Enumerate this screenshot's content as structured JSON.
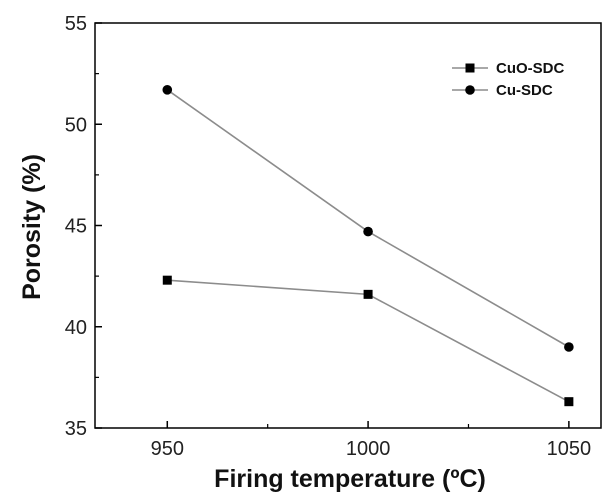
{
  "chart_data": {
    "type": "line",
    "title": "",
    "xlabel": "Firing temperature (ºC)",
    "ylabel": "Porosity (%)",
    "xlim": [
      932,
      1058
    ],
    "ylim": [
      35,
      55
    ],
    "xticks": [
      950,
      1000,
      1050
    ],
    "yticks": [
      35,
      40,
      45,
      50,
      55
    ],
    "grid": false,
    "legend_position": "top-right",
    "series": [
      {
        "name": "CuO-SDC",
        "marker": "square",
        "x": [
          950,
          1000,
          1050
        ],
        "y": [
          42.3,
          41.6,
          36.3
        ]
      },
      {
        "name": "Cu-SDC",
        "marker": "circle",
        "x": [
          950,
          1000,
          1050
        ],
        "y": [
          51.7,
          44.7,
          39.0
        ]
      }
    ],
    "colors": {
      "line": "#8c8c8c",
      "marker": "#000000",
      "axis": "#000000"
    }
  }
}
